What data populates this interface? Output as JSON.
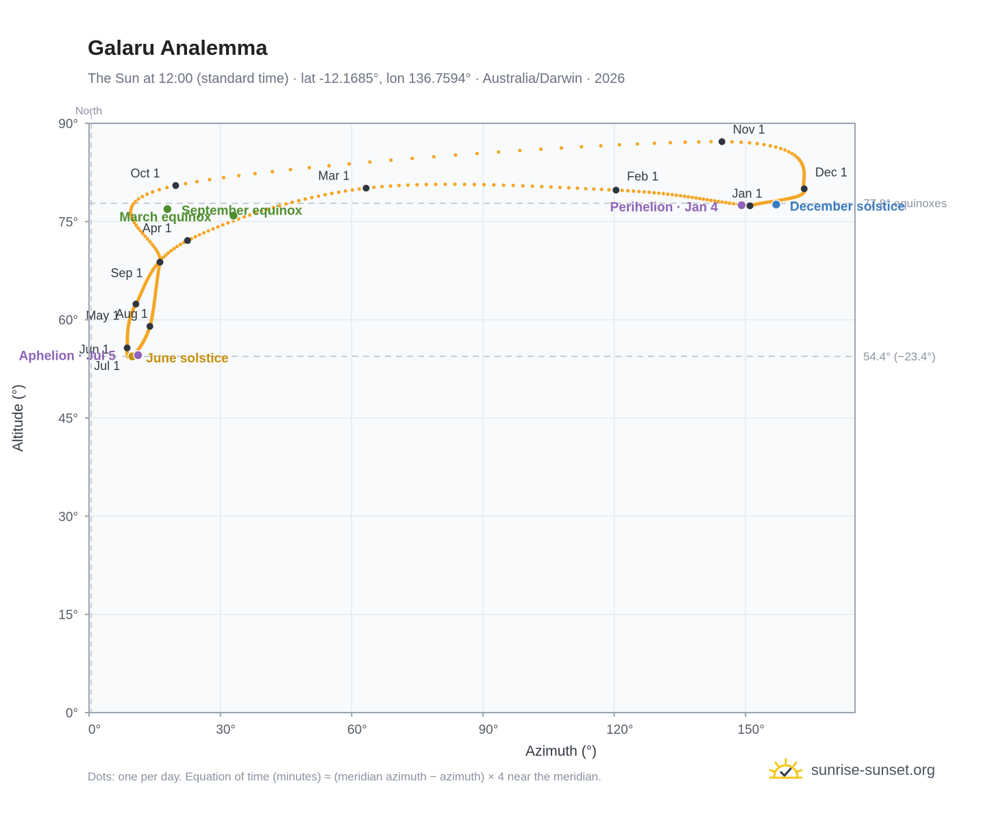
{
  "title": "Galaru Analemma",
  "subtitle": "The Sun at 12:00 (standard time) · lat -12.1685°, lon 136.7594° · Australia/Darwin · 2026",
  "footnote": "Dots: one per day. Equation of time (minutes) ≈ (meridian azimuth − azimuth) × 4 near the meridian.",
  "brand": {
    "name": "sunrise-sunset.org",
    "icon": "sun-check-icon"
  },
  "colors": {
    "path": "#f4a623",
    "month_marker": "#2f3640",
    "equinox": "#4f8f2f",
    "june_solstice": "#c8900a",
    "december_solstice": "#3b7bbf",
    "apsis": "#8e63b8",
    "grid": "#e6eaef",
    "plot_bg": "#f8fafc",
    "axis": "#9aa3ae",
    "reference_line": "#b9bfc7"
  },
  "chart_data": {
    "type": "scatter",
    "xlabel": "Azimuth (°)",
    "ylabel": "Altitude (°)",
    "xlim": [
      0,
      175
    ],
    "ylim": [
      0,
      90
    ],
    "x_ticks": [
      {
        "value": 0,
        "label": "0°"
      },
      {
        "value": 30,
        "label": "30°"
      },
      {
        "value": 60,
        "label": "60°"
      },
      {
        "value": 90,
        "label": "90°"
      },
      {
        "value": 120,
        "label": "120°"
      },
      {
        "value": 150,
        "label": "150°"
      }
    ],
    "y_ticks": [
      {
        "value": 0,
        "label": "0°"
      },
      {
        "value": 15,
        "label": "15°"
      },
      {
        "value": 30,
        "label": "30°"
      },
      {
        "value": 45,
        "label": "45°"
      },
      {
        "value": 60,
        "label": "60°"
      },
      {
        "value": 75,
        "label": "75°"
      },
      {
        "value": 90,
        "label": "90°"
      }
    ],
    "grid": true,
    "north_line": {
      "azimuth": 0.5,
      "label": "North"
    },
    "reference_lines": [
      {
        "altitude": 77.8,
        "label": "77.8° equinoxes"
      },
      {
        "altitude": 54.4,
        "label": "54.4° (−23.4°)"
      }
    ],
    "month_markers": [
      {
        "label": "Jan 1",
        "azimuth": 151.0,
        "altitude": 77.4
      },
      {
        "label": "Feb 1",
        "azimuth": 120.4,
        "altitude": 79.8
      },
      {
        "label": "Mar 1",
        "azimuth": 63.3,
        "altitude": 80.1
      },
      {
        "label": "Apr 1",
        "azimuth": 22.5,
        "altitude": 72.1
      },
      {
        "label": "May 1",
        "azimuth": 10.7,
        "altitude": 62.4
      },
      {
        "label": "Jun 1",
        "azimuth": 8.7,
        "altitude": 55.7
      },
      {
        "label": "Jul 1",
        "azimuth": 9.9,
        "altitude": 54.4
      },
      {
        "label": "Aug 1",
        "azimuth": 13.9,
        "altitude": 59.0
      },
      {
        "label": "Sep 1",
        "azimuth": 16.2,
        "altitude": 68.8
      },
      {
        "label": "Oct 1",
        "azimuth": 19.8,
        "altitude": 80.5
      },
      {
        "label": "Nov 1",
        "azimuth": 144.6,
        "altitude": 87.2
      },
      {
        "label": "Dec 1",
        "azimuth": 163.4,
        "altitude": 80.0
      }
    ],
    "events": [
      {
        "label": "March equinox",
        "azimuth": 17.9,
        "altitude": 76.9,
        "kind": "equinox"
      },
      {
        "label": "September equinox",
        "azimuth": 33.0,
        "altitude": 75.9,
        "kind": "equinox"
      },
      {
        "label": "June solstice",
        "azimuth": 9.9,
        "altitude": 54.4,
        "kind": "june_solstice"
      },
      {
        "label": "December solstice",
        "azimuth": 157.0,
        "altitude": 77.6,
        "kind": "december_solstice"
      },
      {
        "label": "Perihelion · Jan 4",
        "azimuth": 149.1,
        "altitude": 77.5,
        "kind": "apsis"
      },
      {
        "label": "Aphelion · Jul 5",
        "azimuth": 11.2,
        "altitude": 54.6,
        "kind": "apsis"
      }
    ]
  }
}
